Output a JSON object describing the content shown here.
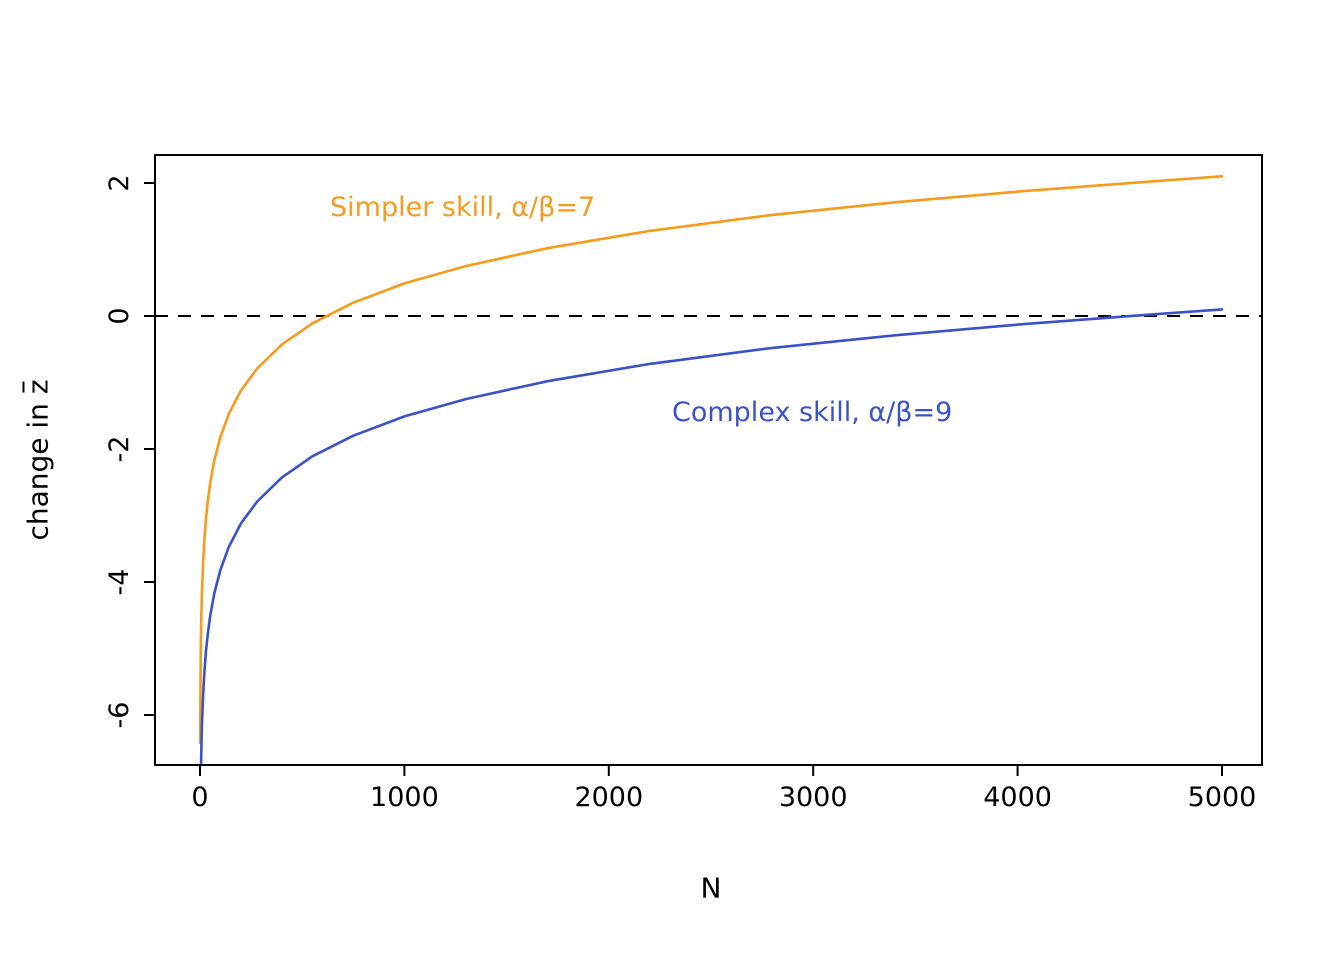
{
  "chart_data": {
    "type": "line",
    "title": "",
    "xlabel": "N",
    "ylabel": "change in z̄",
    "ylabel_prefix": "change in",
    "ylabel_var": "z",
    "x_ticks": [
      0,
      1000,
      2000,
      3000,
      4000,
      5000
    ],
    "y_ticks": [
      2,
      0,
      -2,
      -4,
      -6
    ],
    "xlim": [
      -220,
      5220
    ],
    "ylim": [
      -6.75,
      2.42
    ],
    "grid": false,
    "reference_line": {
      "y": 0,
      "style": "dashed",
      "color": "#000000"
    },
    "series": [
      {
        "name": "Simpler skill, α/β=7",
        "color": "#F89A1C",
        "x": [
          1,
          1.5,
          2,
          3,
          4,
          5,
          7,
          9,
          12,
          16,
          21,
          28,
          37,
          50,
          70,
          100,
          140,
          200,
          280,
          400,
          550,
          750,
          1000,
          1300,
          1700,
          2200,
          2800,
          3400,
          4000,
          4600,
          5000
        ],
        "y": [
          -6.42,
          -6.02,
          -5.73,
          -5.32,
          -5.03,
          -4.81,
          -4.47,
          -4.22,
          -3.94,
          -3.65,
          -3.38,
          -3.09,
          -2.81,
          -2.51,
          -2.17,
          -1.82,
          -1.48,
          -1.12,
          -0.79,
          -0.43,
          -0.11,
          0.2,
          0.49,
          0.75,
          1.02,
          1.28,
          1.52,
          1.71,
          1.87,
          2.01,
          2.1
        ]
      },
      {
        "name": "Complex skill, α/β=9",
        "color": "#3A52C8",
        "x": [
          5,
          6,
          8,
          10,
          13,
          17,
          22,
          29,
          38,
          50,
          70,
          100,
          140,
          200,
          280,
          400,
          550,
          750,
          1000,
          1300,
          1700,
          2200,
          2800,
          3400,
          4000,
          4600,
          5000
        ],
        "y": [
          -6.81,
          -6.63,
          -6.34,
          -6.12,
          -5.86,
          -5.59,
          -5.33,
          -5.05,
          -4.78,
          -4.51,
          -4.17,
          -3.82,
          -3.48,
          -3.12,
          -2.79,
          -2.43,
          -2.11,
          -1.8,
          -1.51,
          -1.25,
          -0.98,
          -0.72,
          -0.48,
          -0.29,
          -0.13,
          0.01,
          0.1
        ]
      }
    ],
    "annotations": [
      {
        "text": "Simpler skill, α/β=7",
        "color": "#F89A1C"
      },
      {
        "text": "Complex skill, α/β=9",
        "color": "#3A52C8"
      }
    ],
    "legend": "none (inline labels)"
  },
  "style": {
    "background": "#FFFFFF",
    "axis_color": "#000000",
    "dash_pattern": "13 10"
  }
}
